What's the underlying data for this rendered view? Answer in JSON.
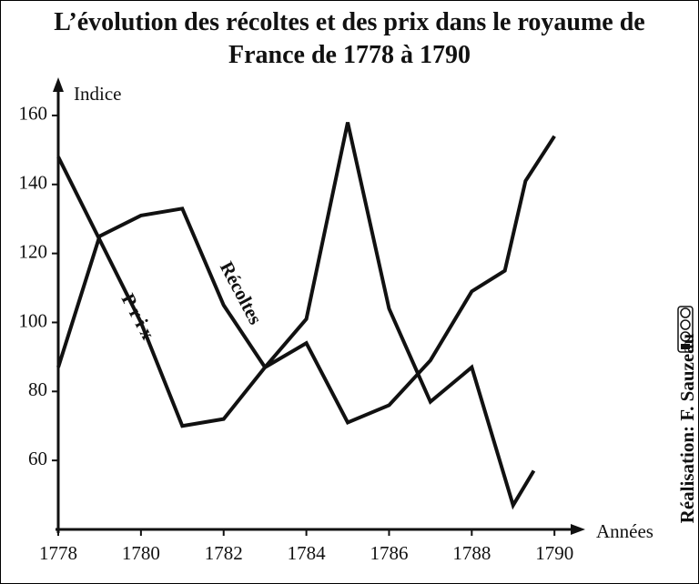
{
  "chart_data": {
    "type": "line",
    "title": "L’évolution des récoltes et des prix dans le royaume de France de 1778 à 1790",
    "xlabel": "Années",
    "ylabel": "Indice",
    "credit": "Réalisation: F. Sauzeau",
    "xlim": [
      1778,
      1790.7
    ],
    "xticks": [
      1778,
      1780,
      1782,
      1784,
      1786,
      1788,
      1790
    ],
    "ylim": [
      40,
      170
    ],
    "yticks": [
      60,
      80,
      100,
      120,
      140,
      160
    ],
    "series": [
      {
        "name": "Prix",
        "color": "#111111",
        "x": [
          1778,
          1780,
          1781,
          1782,
          1783,
          1784,
          1785,
          1786,
          1787,
          1788,
          1789,
          1789.5
        ],
        "values": [
          148,
          100,
          70,
          72,
          87,
          101,
          158,
          104,
          77,
          87,
          47,
          57
        ]
      },
      {
        "name": "Récoltes",
        "color": "#111111",
        "x": [
          1778,
          1779,
          1780,
          1781,
          1782,
          1783,
          1784,
          1785,
          1786,
          1787,
          1788,
          1788.8,
          1789.3,
          1790
        ],
        "values": [
          87,
          125,
          131,
          133,
          105,
          87,
          94,
          71,
          76,
          89,
          109,
          115,
          141,
          154
        ]
      }
    ]
  }
}
